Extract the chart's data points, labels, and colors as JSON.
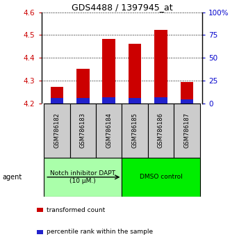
{
  "title": "GDS4488 / 1397945_at",
  "categories": [
    "GSM786182",
    "GSM786183",
    "GSM786184",
    "GSM786185",
    "GSM786186",
    "GSM786187"
  ],
  "red_tops": [
    4.272,
    4.353,
    4.482,
    4.461,
    4.522,
    4.293
  ],
  "blue_tops": [
    4.222,
    4.222,
    4.228,
    4.224,
    4.226,
    4.218
  ],
  "base": 4.2,
  "ylim_left": [
    4.2,
    4.6
  ],
  "ylim_right": [
    0,
    100
  ],
  "yticks_left": [
    4.2,
    4.3,
    4.4,
    4.5,
    4.6
  ],
  "yticks_right": [
    0,
    25,
    50,
    75,
    100
  ],
  "ytick_labels_right": [
    "0",
    "25",
    "50",
    "75",
    "100%"
  ],
  "bar_width": 0.5,
  "red_color": "#cc0000",
  "blue_color": "#2222cc",
  "agent_groups": [
    {
      "label": "Notch inhibitor DAPT\n(10 μM.)",
      "start": 0,
      "end": 3,
      "color": "#aaffaa"
    },
    {
      "label": "DMSO control",
      "start": 3,
      "end": 6,
      "color": "#00ee00"
    }
  ],
  "legend": [
    {
      "color": "#cc0000",
      "label": "transformed count"
    },
    {
      "color": "#2222cc",
      "label": "percentile rank within the sample"
    }
  ],
  "left_tick_color": "#cc0000",
  "right_tick_color": "#0000cc",
  "sample_bg_color": "#cccccc",
  "agent_label": "agent"
}
